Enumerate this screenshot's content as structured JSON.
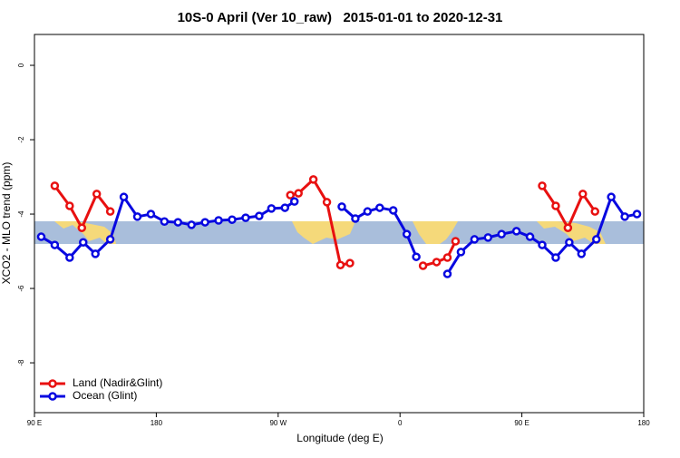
{
  "chart_data": {
    "type": "line",
    "title": "10S-0 April (Ver 10_raw)   2015-01-01 to 2020-12-31",
    "xlabel": "Longitude (deg E)",
    "ylabel": "XCO2 - MLO trend (ppm)",
    "xlim": [
      90,
      540
    ],
    "ylim": [
      -9.34,
      0.83
    ],
    "xticks": [
      {
        "value": 90,
        "label": "90 E"
      },
      180,
      {
        "value": 270,
        "label": "90 W"
      },
      {
        "value": 360,
        "label": "0"
      },
      {
        "value": 450,
        "label": "90 E"
      },
      {
        "value": 540,
        "label": "180"
      }
    ],
    "yticks": [
      0,
      -2,
      -4,
      -6,
      -8
    ],
    "legend": "bottom-left",
    "series": [
      {
        "name": "Land (Nadir&Glint)",
        "color": "#e81010",
        "x": [
          105,
          116,
          125,
          136,
          146,
          260,
          279,
          285,
          296,
          306,
          316,
          323,
          350,
          377,
          387,
          395,
          401,
          440,
          465,
          475,
          484,
          495,
          504
        ],
        "values": [
          -3.24,
          -3.78,
          -4.37,
          -3.46,
          -3.93,
          null,
          -3.49,
          -3.44,
          -3.07,
          -3.68,
          -5.37,
          -5.32,
          null,
          -5.39,
          -5.29,
          -5.17,
          -4.73,
          null,
          -3.24,
          -3.78,
          -4.37,
          -3.46,
          -3.93
        ]
      },
      {
        "name": "Ocean (Glint)",
        "color": "#0808e0",
        "x": [
          95,
          105,
          116,
          126,
          135,
          146,
          156,
          166,
          176,
          186,
          196,
          206,
          216,
          226,
          236,
          246,
          256,
          265,
          275,
          282,
          300,
          317,
          327,
          336,
          345,
          355,
          365,
          372,
          385,
          395,
          405,
          415,
          425,
          435,
          446,
          456,
          465,
          475,
          485,
          494,
          505,
          516,
          526,
          535
        ],
        "values": [
          -4.61,
          -4.83,
          -5.17,
          -4.76,
          -5.07,
          -4.68,
          -3.54,
          -4.07,
          -4.0,
          -4.2,
          -4.22,
          -4.29,
          -4.22,
          -4.17,
          -4.15,
          -4.1,
          -4.05,
          -3.85,
          -3.83,
          -3.66,
          null,
          -3.8,
          -4.12,
          -3.93,
          -3.83,
          -3.9,
          -4.54,
          -5.15,
          null,
          -5.61,
          -5.02,
          -4.68,
          -4.63,
          -4.54,
          -4.46,
          -4.61,
          -4.83,
          -5.17,
          -4.76,
          -5.07,
          -4.68,
          -3.54,
          -4.07,
          -4.0
        ]
      }
    ]
  }
}
